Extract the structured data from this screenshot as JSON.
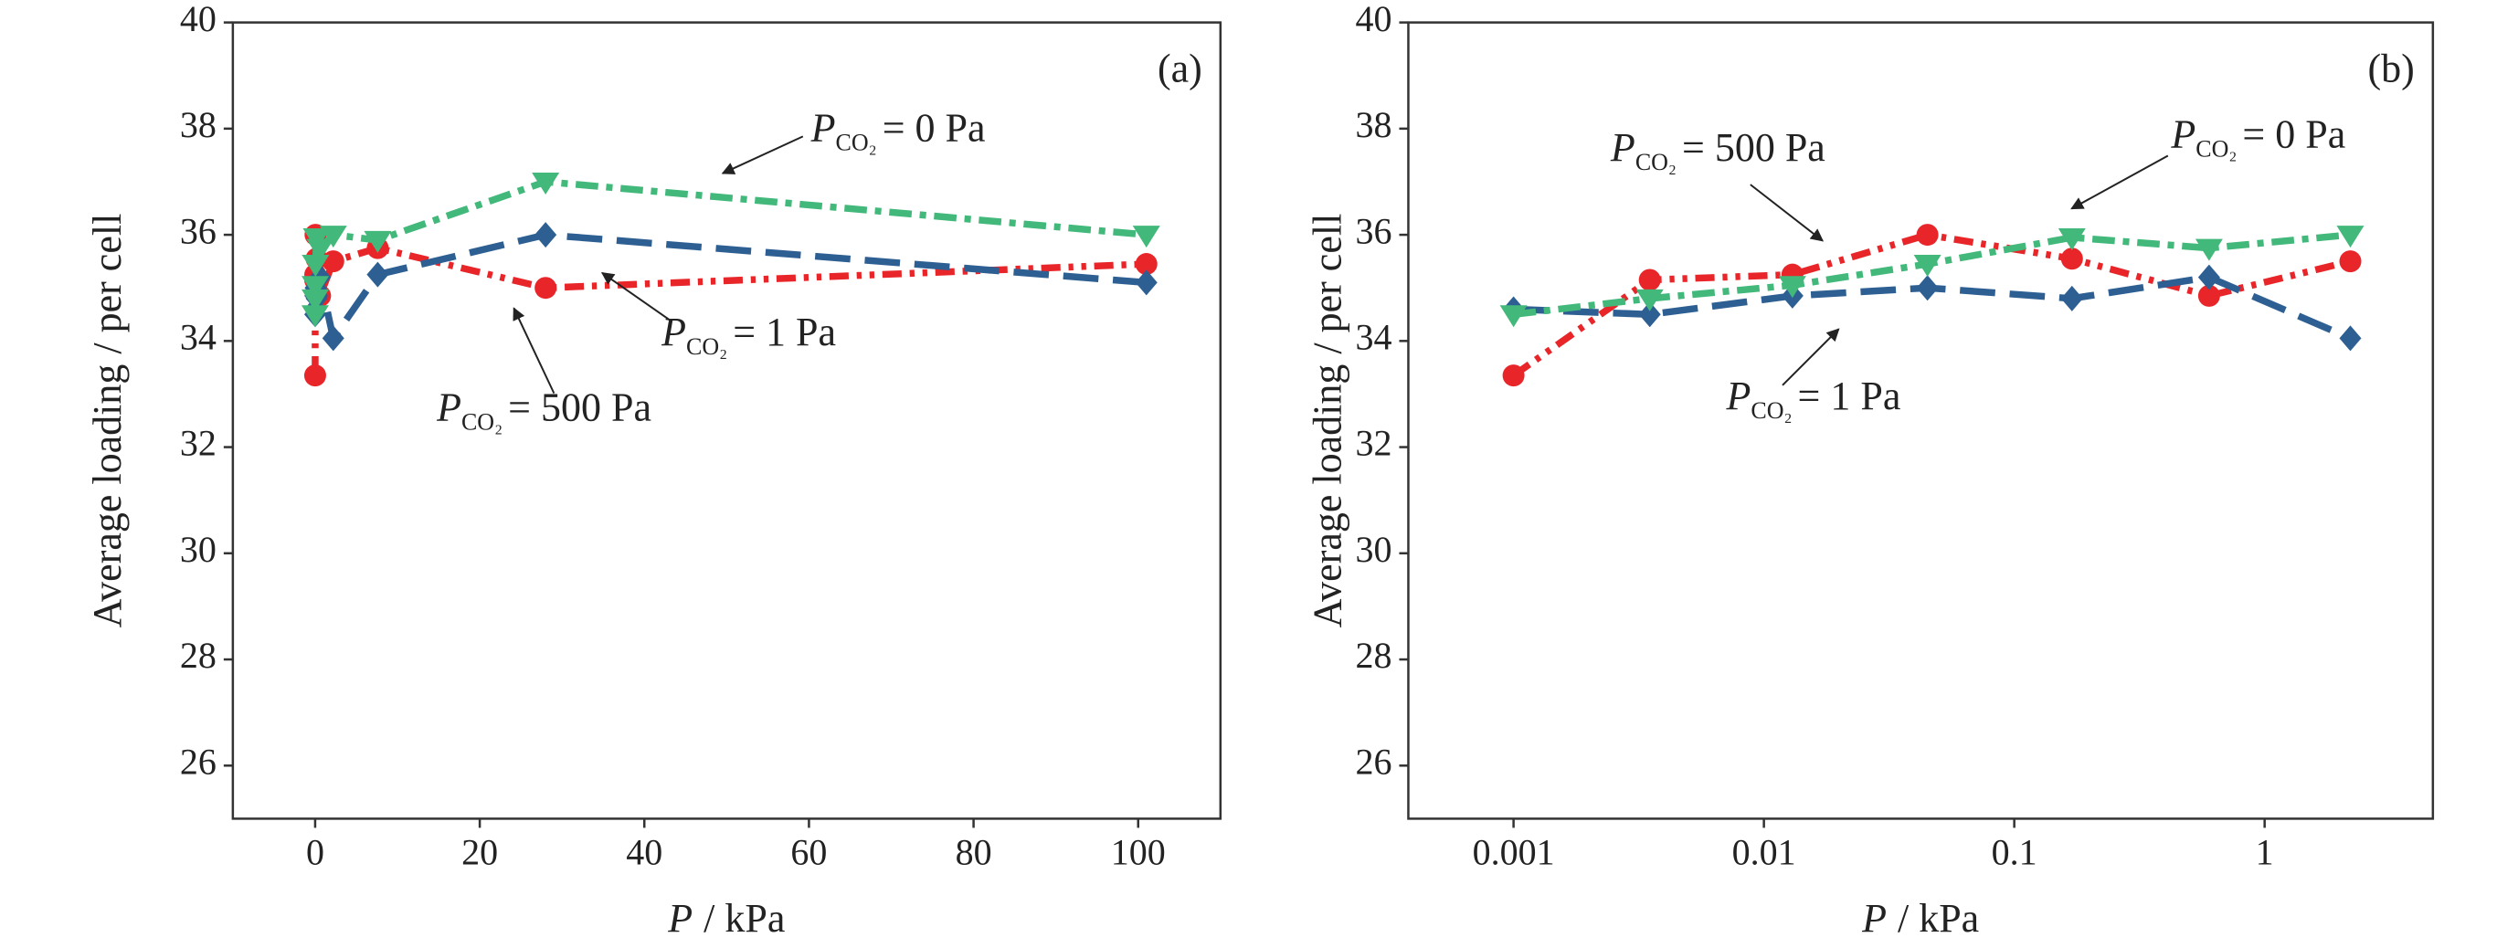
{
  "chart_data": [
    {
      "type": "line",
      "panel_label": "(a)",
      "xscale": "linear",
      "xlabel": {
        "symbol": "P",
        "text": "/ kPa"
      },
      "ylabel": "Average loading / per cell",
      "x": [
        0.001,
        0.0035,
        0.013,
        0.045,
        0.17,
        0.6,
        2.2,
        7.6,
        28,
        101
      ],
      "xlim": [
        -10,
        110
      ],
      "xticks": [
        0,
        20,
        40,
        60,
        80,
        100
      ],
      "ylim": [
        25,
        40
      ],
      "yticks": [
        26,
        28,
        30,
        32,
        34,
        36,
        38,
        40
      ],
      "series": [
        {
          "color": "#e8262a",
          "marker": "circle",
          "dash": "dashdotdot",
          "values": [
            33.35,
            35.15,
            35.25,
            36.0,
            35.55,
            34.85,
            35.5,
            35.75,
            35.0,
            35.45
          ],
          "label": {
            "symbol": "P",
            "subscript": "CO₂",
            "text": "= 500 Pa"
          }
        },
        {
          "color": "#2d5f93",
          "marker": "diamond",
          "dash": "dash",
          "values": [
            34.6,
            34.5,
            34.85,
            35.0,
            34.8,
            35.2,
            34.05,
            35.25,
            36.0,
            35.1
          ],
          "label": {
            "symbol": "P",
            "subscript": "CO₂",
            "text": "= 1 Pa"
          }
        },
        {
          "color": "#42b87a",
          "marker": "triangle",
          "dash": "dashdot",
          "values": [
            34.5,
            34.8,
            35.05,
            35.45,
            35.95,
            35.75,
            36.0,
            35.9,
            37.0,
            36.0
          ],
          "label": {
            "symbol": "P",
            "subscript": "CO₂",
            "text": "= 0 Pa"
          }
        }
      ]
    },
    {
      "type": "line",
      "panel_label": "(b)",
      "xscale": "log",
      "xlabel": {
        "symbol": "P",
        "text": "/ kPa"
      },
      "ylabel": "Average loading / per cell",
      "x": [
        0.001,
        0.0035,
        0.013,
        0.045,
        0.17,
        0.6,
        2.2
      ],
      "xlim": [
        0.00038,
        4.7
      ],
      "xticks": [
        0.001,
        0.01,
        0.1,
        1
      ],
      "ylim": [
        25,
        40
      ],
      "yticks": [
        26,
        28,
        30,
        32,
        34,
        36,
        38,
        40
      ],
      "series": [
        {
          "color": "#e8262a",
          "marker": "circle",
          "dash": "dashdotdot",
          "values": [
            33.35,
            35.15,
            35.25,
            36.0,
            35.55,
            34.85,
            35.5
          ],
          "label": {
            "symbol": "P",
            "subscript": "CO₂",
            "text": "= 500 Pa"
          }
        },
        {
          "color": "#2d5f93",
          "marker": "diamond",
          "dash": "dash",
          "values": [
            34.6,
            34.5,
            34.85,
            35.0,
            34.8,
            35.2,
            34.05
          ],
          "label": {
            "symbol": "P",
            "subscript": "CO₂",
            "text": "= 1 Pa"
          }
        },
        {
          "color": "#42b87a",
          "marker": "triangle",
          "dash": "dashdot",
          "values": [
            34.5,
            34.8,
            35.05,
            35.45,
            35.95,
            35.75,
            36.0
          ],
          "label": {
            "symbol": "P",
            "subscript": "CO₂",
            "text": "= 0 Pa"
          }
        }
      ]
    }
  ]
}
